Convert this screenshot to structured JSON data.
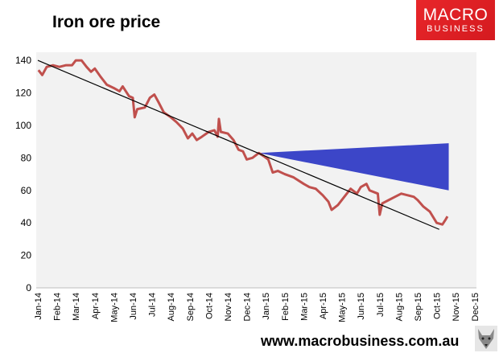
{
  "chart_data": {
    "type": "line",
    "title": "Iron ore price",
    "xlabel": "",
    "ylabel": "",
    "ylim": [
      0,
      145
    ],
    "yticks": [
      0,
      20,
      40,
      60,
      80,
      100,
      120,
      140
    ],
    "xticks": [
      "Jan-14",
      "Feb-14",
      "Mar-14",
      "Apr-14",
      "May-14",
      "Jun-14",
      "Jul-14",
      "Aug-14",
      "Sep-14",
      "Oct-14",
      "Nov-14",
      "Dec-14",
      "Jan-15",
      "Feb-15",
      "Mar-15",
      "Apr-15",
      "May-15",
      "Jun-15",
      "Jul-15",
      "Aug-15",
      "Sep-15",
      "Oct-15",
      "Nov-15",
      "Dec-15"
    ],
    "grid": false,
    "colors": {
      "price": "#c0504d",
      "trend": "#000000",
      "cone": "#3c46c8",
      "plot_bg": "#f2f2f2"
    },
    "series": [
      {
        "role": "price",
        "points": [
          [
            "2014-01-02",
            134
          ],
          [
            "2014-01-08",
            131
          ],
          [
            "2014-01-15",
            136
          ],
          [
            "2014-01-25",
            137
          ],
          [
            "2014-02-05",
            136
          ],
          [
            "2014-02-15",
            137
          ],
          [
            "2014-02-25",
            137
          ],
          [
            "2014-03-01",
            140
          ],
          [
            "2014-03-10",
            140
          ],
          [
            "2014-03-18",
            136
          ],
          [
            "2014-03-25",
            133
          ],
          [
            "2014-04-01",
            135
          ],
          [
            "2014-04-10",
            130
          ],
          [
            "2014-04-20",
            125
          ],
          [
            "2014-05-01",
            123
          ],
          [
            "2014-05-10",
            121
          ],
          [
            "2014-05-15",
            124
          ],
          [
            "2014-05-25",
            118
          ],
          [
            "2014-06-01",
            117
          ],
          [
            "2014-06-04",
            105
          ],
          [
            "2014-06-08",
            110
          ],
          [
            "2014-06-20",
            111
          ],
          [
            "2014-06-28",
            117
          ],
          [
            "2014-07-05",
            119
          ],
          [
            "2014-07-12",
            114
          ],
          [
            "2014-07-20",
            108
          ],
          [
            "2014-08-01",
            105
          ],
          [
            "2014-08-10",
            102
          ],
          [
            "2014-08-20",
            98
          ],
          [
            "2014-08-28",
            92
          ],
          [
            "2014-09-05",
            95
          ],
          [
            "2014-09-12",
            91
          ],
          [
            "2014-09-20",
            93
          ],
          [
            "2014-10-01",
            96
          ],
          [
            "2014-10-10",
            97
          ],
          [
            "2014-10-15",
            93
          ],
          [
            "2014-10-17",
            104
          ],
          [
            "2014-10-20",
            96
          ],
          [
            "2014-11-01",
            95
          ],
          [
            "2014-11-10",
            91
          ],
          [
            "2014-11-18",
            85
          ],
          [
            "2014-11-25",
            84
          ],
          [
            "2014-12-01",
            79
          ],
          [
            "2014-12-10",
            80
          ],
          [
            "2014-12-20",
            83
          ],
          [
            "2014-12-28",
            81
          ],
          [
            "2015-01-05",
            79
          ],
          [
            "2015-01-12",
            71
          ],
          [
            "2015-01-20",
            72
          ],
          [
            "2015-02-01",
            70
          ],
          [
            "2015-02-15",
            68
          ],
          [
            "2015-03-01",
            64
          ],
          [
            "2015-03-10",
            62
          ],
          [
            "2015-03-20",
            61
          ],
          [
            "2015-04-01",
            57
          ],
          [
            "2015-04-10",
            53
          ],
          [
            "2015-04-15",
            48
          ],
          [
            "2015-04-25",
            51
          ],
          [
            "2015-05-05",
            56
          ],
          [
            "2015-05-15",
            61
          ],
          [
            "2015-05-25",
            58
          ],
          [
            "2015-06-01",
            62
          ],
          [
            "2015-06-10",
            64
          ],
          [
            "2015-06-15",
            60
          ],
          [
            "2015-06-28",
            58
          ],
          [
            "2015-07-01",
            45
          ],
          [
            "2015-07-05",
            52
          ],
          [
            "2015-07-15",
            54
          ],
          [
            "2015-07-25",
            56
          ],
          [
            "2015-08-05",
            58
          ],
          [
            "2015-08-15",
            57
          ],
          [
            "2015-08-25",
            56
          ],
          [
            "2015-09-01",
            54
          ],
          [
            "2015-09-10",
            50
          ],
          [
            "2015-09-20",
            47
          ],
          [
            "2015-10-01",
            40
          ],
          [
            "2015-10-10",
            39
          ],
          [
            "2015-10-15",
            42
          ],
          [
            "2015-10-18",
            44
          ]
        ]
      },
      {
        "role": "trend",
        "points": [
          [
            "2014-01-01",
            140
          ],
          [
            "2015-10-05",
            36
          ]
        ]
      },
      {
        "role": "cone",
        "start": [
          "2014-12-20",
          83
        ],
        "end_upper": [
          "2015-10-20",
          89
        ],
        "end_lower": [
          "2015-10-20",
          60
        ]
      }
    ]
  },
  "branding": {
    "logo_line1": "MACRO",
    "logo_line2": "BUSINESS",
    "website": "www.macrobusiness.com.au",
    "wolf_icon": "wolf-logo-icon"
  }
}
